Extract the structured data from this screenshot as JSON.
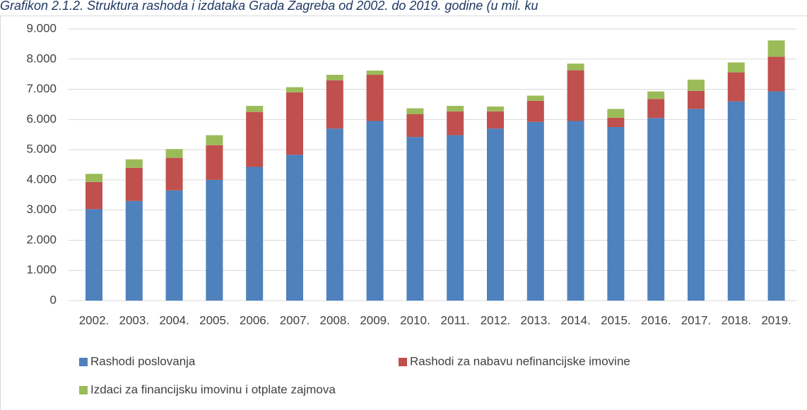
{
  "chart_data": {
    "type": "stacked_bar",
    "title": "Grafikon 2.1.2. Struktura rashoda i izdataka Grada Zagreba od 2002. do 2019. godine (u mil. ku",
    "categories": [
      "2002.",
      "2003.",
      "2004.",
      "2005.",
      "2006.",
      "2007.",
      "2008.",
      "2009.",
      "2010.",
      "2011.",
      "2012.",
      "2013.",
      "2014.",
      "2015.",
      "2016.",
      "2017.",
      "2018.",
      "2019."
    ],
    "series": [
      {
        "name": "Rashodi poslovanja",
        "color": "#4f81bd",
        "values": [
          3030,
          3300,
          3650,
          4000,
          4430,
          4830,
          5700,
          5950,
          5420,
          5480,
          5700,
          5920,
          5950,
          5750,
          6050,
          6350,
          6600,
          6930
        ]
      },
      {
        "name": "Rashodi za nabavu nefinancijske imovine",
        "color": "#c0504d",
        "values": [
          900,
          1100,
          1080,
          1150,
          1820,
          2070,
          1600,
          1530,
          760,
          790,
          570,
          700,
          1680,
          310,
          630,
          600,
          960,
          1150
        ]
      },
      {
        "name": "Izdaci za financijsku imovinu i otplate zajmova",
        "color": "#9bbb59",
        "values": [
          270,
          280,
          290,
          330,
          200,
          170,
          180,
          140,
          190,
          180,
          160,
          170,
          220,
          290,
          250,
          370,
          330,
          540
        ]
      }
    ],
    "ylim": [
      0,
      9000
    ],
    "yticks": [
      0,
      {
        "value": 1000,
        "label": "1.000"
      },
      {
        "value": 2000,
        "label": "2.000"
      },
      {
        "value": 3000,
        "label": "3.000"
      },
      {
        "value": 4000,
        "label": "4.000"
      },
      {
        "value": 5000,
        "label": "5.000"
      },
      {
        "value": 6000,
        "label": "6.000"
      },
      {
        "value": 7000,
        "label": "7.000"
      },
      {
        "value": 8000,
        "label": "8.000"
      },
      {
        "value": 9000,
        "label": "9.000"
      }
    ],
    "grid": true
  }
}
